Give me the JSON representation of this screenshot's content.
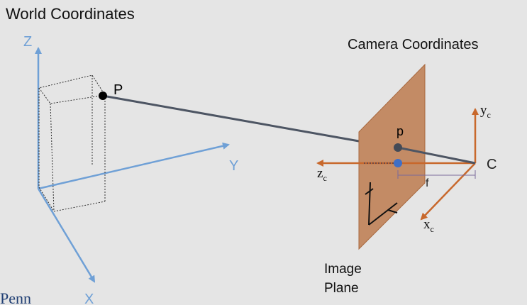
{
  "titles": {
    "world": "World Coordinates",
    "camera": "Camera Coordinates"
  },
  "world_axes": {
    "z": "Z",
    "y": "Y",
    "x": "X"
  },
  "points": {
    "world_point": "P",
    "image_point": "p",
    "camera_center": "C"
  },
  "camera_axes": {
    "y": "y",
    "z": "z",
    "x": "x",
    "subscript": "c"
  },
  "focal_length_label": "f",
  "image_plane_label": {
    "line1": "Image",
    "line2": "Plane"
  },
  "logo_text": "enn",
  "colors": {
    "background": "#e5e5e5",
    "world_axis": "#6fa0d6",
    "camera_axis": "#c8682c",
    "image_plane_fill": "#c0835a",
    "projection_ray": "#4d5563",
    "principal_point": "#3f6fc6",
    "logo": "#1f3e73"
  }
}
